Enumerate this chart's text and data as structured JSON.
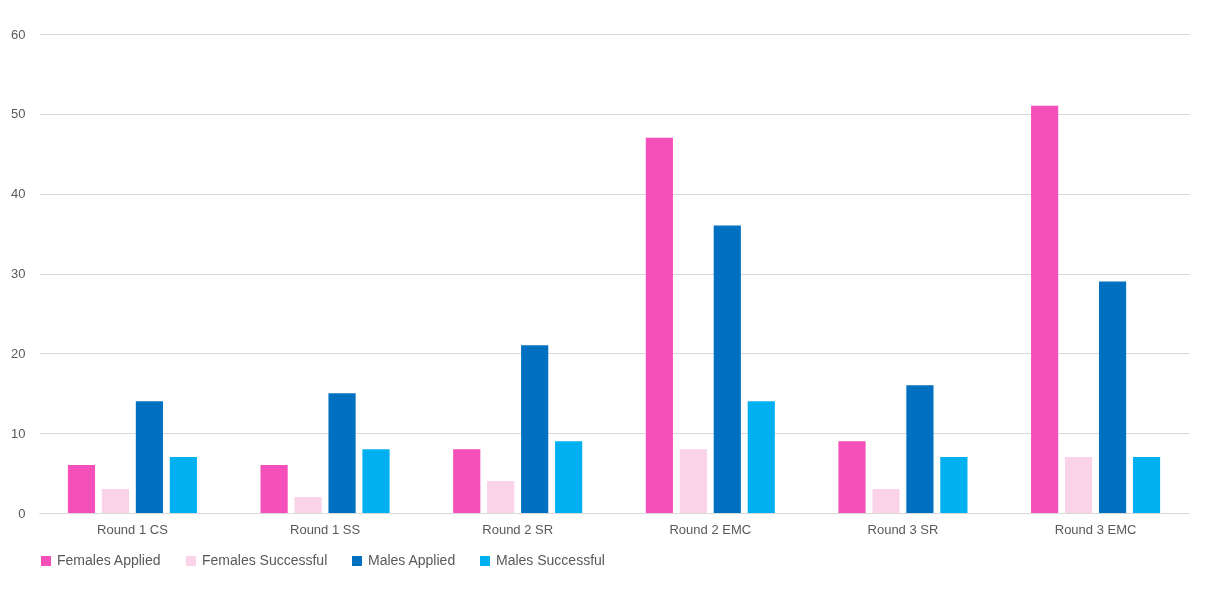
{
  "chart_data": {
    "type": "bar",
    "categories": [
      "Round 1 CS",
      "Round 1 SS",
      "Round 2 SR",
      "Round 2 EMC",
      "Round 3 SR",
      "Round 3 EMC"
    ],
    "series": [
      {
        "name": "Females Applied",
        "color": "#f54fb9",
        "values": [
          6,
          6,
          8,
          47,
          9,
          51
        ]
      },
      {
        "name": "Females Successful",
        "color": "#fad3e8",
        "values": [
          3,
          2,
          4,
          8,
          3,
          7
        ]
      },
      {
        "name": "Males Applied",
        "color": "#0070c0",
        "values": [
          14,
          15,
          21,
          36,
          16,
          29
        ]
      },
      {
        "name": "Males Successful",
        "color": "#00b0f0",
        "values": [
          7,
          8,
          9,
          14,
          7,
          7
        ]
      }
    ],
    "ylim": [
      0,
      60
    ],
    "yticks": [
      0,
      10,
      20,
      30,
      40,
      50,
      60
    ],
    "grid": "y",
    "legend": "bottom"
  }
}
